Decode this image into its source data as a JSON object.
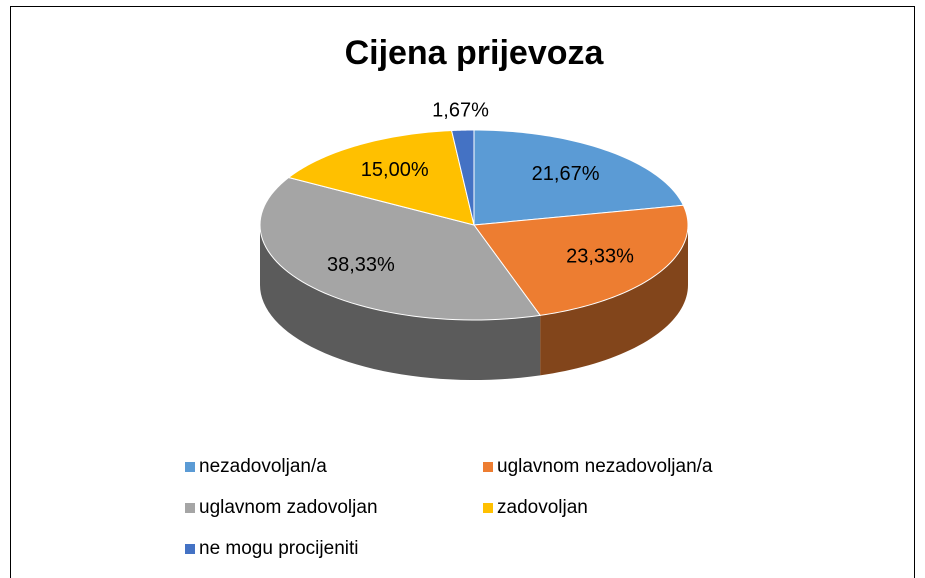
{
  "chart_data": {
    "type": "pie",
    "title": "Cijena prijevoza",
    "categories": [
      "nezadovoljan/a",
      "uglavnom nezadovoljan/a",
      "uglavnom zadovoljan",
      "zadovoljan",
      "ne mogu procijeniti"
    ],
    "values": [
      21.67,
      23.33,
      38.33,
      15.0,
      1.67
    ],
    "value_labels": [
      "21,67%",
      "23,33%",
      "38,33%",
      "15,00%",
      "1,67%"
    ],
    "colors": [
      "#5b9bd5",
      "#ed7d31",
      "#a5a5a5",
      "#ffc000",
      "#4472c4"
    ],
    "legend": "bottom"
  }
}
